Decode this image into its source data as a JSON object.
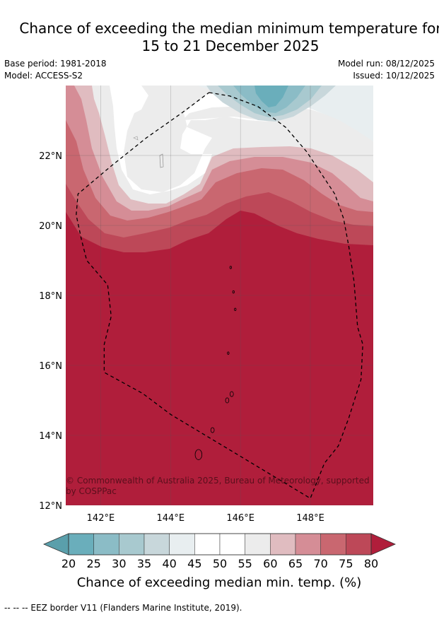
{
  "title": {
    "line1": "Chance of exceeding the median minimum temperature for",
    "line2": "15 to 21 December 2025"
  },
  "meta": {
    "base_period": "Base period: 1981-2018",
    "model": "Model: ACCESS-S2",
    "model_run": "Model run: 08/12/2025",
    "issued": "Issued: 10/12/2025"
  },
  "map": {
    "lat_range": [
      12,
      24
    ],
    "lon_range": [
      141,
      149.8
    ],
    "lat_ticks": [
      {
        "value": 12,
        "label": "12°N"
      },
      {
        "value": 14,
        "label": "14°N"
      },
      {
        "value": 16,
        "label": "16°N"
      },
      {
        "value": 18,
        "label": "18°N"
      },
      {
        "value": 20,
        "label": "20°N"
      },
      {
        "value": 22,
        "label": "22°N"
      }
    ],
    "lon_ticks": [
      {
        "value": 142,
        "label": "142°E"
      },
      {
        "value": 144,
        "label": "144°E"
      },
      {
        "value": 146,
        "label": "146°E"
      },
      {
        "value": 148,
        "label": "148°E"
      }
    ],
    "copyright_line1": "© Commonwealth of Australia 2025, Bureau of Meteorology, supported",
    "copyright_line2": "by COSPPac",
    "eez_border": [
      [
        145.1,
        23.8
      ],
      [
        145.7,
        23.7
      ],
      [
        146.5,
        23.4
      ],
      [
        147.3,
        22.8
      ],
      [
        147.9,
        22.1
      ],
      [
        148.3,
        21.5
      ],
      [
        148.7,
        20.9
      ],
      [
        148.95,
        20.2
      ],
      [
        149.1,
        19.4
      ],
      [
        149.25,
        18.4
      ],
      [
        149.35,
        17.1
      ],
      [
        149.5,
        16.6
      ],
      [
        149.45,
        15.6
      ],
      [
        149.1,
        14.5
      ],
      [
        148.8,
        13.7
      ],
      [
        148.4,
        13.2
      ],
      [
        148.2,
        12.7
      ],
      [
        148.0,
        12.2
      ],
      [
        147.0,
        12.8
      ],
      [
        146.0,
        13.4
      ],
      [
        145.0,
        14.0
      ],
      [
        144.0,
        14.6
      ],
      [
        143.2,
        15.2
      ],
      [
        142.1,
        15.8
      ],
      [
        142.1,
        16.6
      ],
      [
        142.3,
        17.4
      ],
      [
        142.2,
        18.3
      ],
      [
        141.6,
        19.0
      ],
      [
        141.45,
        19.6
      ],
      [
        141.3,
        20.3
      ],
      [
        141.35,
        20.9
      ],
      [
        142.3,
        21.7
      ],
      [
        143.3,
        22.5
      ],
      [
        144.3,
        23.2
      ],
      [
        145.1,
        23.8
      ]
    ],
    "islands": [
      {
        "lon": 144.8,
        "lat": 13.45,
        "size": 8
      },
      {
        "lon": 145.2,
        "lat": 14.15,
        "size": 4
      },
      {
        "lon": 145.62,
        "lat": 15.0,
        "size": 4
      },
      {
        "lon": 145.75,
        "lat": 15.18,
        "size": 4
      },
      {
        "lon": 145.65,
        "lat": 16.35,
        "size": 2
      },
      {
        "lon": 145.85,
        "lat": 17.6,
        "size": 2
      },
      {
        "lon": 145.8,
        "lat": 18.1,
        "size": 2
      },
      {
        "lon": 145.72,
        "lat": 18.8,
        "size": 2
      }
    ]
  },
  "colorbar": {
    "title": "Chance of exceeding median min. temp. (%)",
    "ticks": [
      "20",
      "25",
      "30",
      "35",
      "40",
      "45",
      "50",
      "55",
      "60",
      "65",
      "70",
      "75",
      "80"
    ],
    "under_color": "#5a9fab",
    "over_color": "#b01e3b",
    "colors": [
      "#6aaebb",
      "#8bbcc6",
      "#a8c9cf",
      "#c8d7db",
      "#e8eef0",
      "#ffffff",
      "#ffffff",
      "#ececec",
      "#e0bcc0",
      "#d58d96",
      "#c96770",
      "#bd4858"
    ]
  },
  "footnote": "--  --  -- EEZ border V11 (Flanders Marine Institute, 2019)."
}
